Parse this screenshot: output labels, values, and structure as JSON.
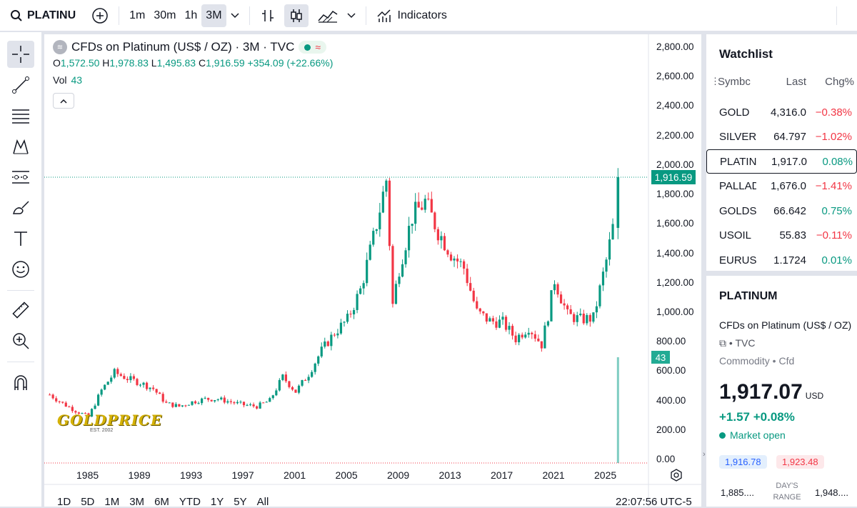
{
  "topbar": {
    "symbol": "PLATINU",
    "intervals": [
      "1m",
      "30m",
      "1h",
      "3M"
    ],
    "active_interval": "3M",
    "indicators_label": "Indicators"
  },
  "chart": {
    "title": "CFDs on Platinum (US$ / OZ) · 3M · TVC",
    "ohlc": {
      "o_label": "O",
      "o": "1,572.50",
      "h_label": "H",
      "h": "1,978.83",
      "l_label": "L",
      "l": "1,495.83",
      "c_label": "C",
      "c": "1,916.59",
      "change": "+354.09 (+22.66%)"
    },
    "vol_label": "Vol",
    "vol_value": "43",
    "last_price_tag": "1,916.59",
    "vol_tag": "43",
    "y_axis": [
      "2,800.00",
      "2,600.00",
      "2,400.00",
      "2,200.00",
      "2,000.00",
      "1,800.00",
      "1,600.00",
      "1,400.00",
      "1,200.00",
      "1,000.00",
      "800.00",
      "600.00",
      "400.00",
      "200.00",
      "0.00"
    ],
    "x_axis": [
      "1985",
      "1989",
      "1993",
      "1997",
      "2001",
      "2005",
      "2009",
      "2013",
      "2017",
      "2021",
      "2025"
    ],
    "ranges": [
      "1D",
      "5D",
      "1M",
      "3M",
      "6M",
      "YTD",
      "1Y",
      "5Y",
      "All"
    ],
    "clock": "22:07:56 UTC-5",
    "watermark": "GOLDPRICE",
    "watermark_sub": "EST. 2002",
    "colors": {
      "up": "#089981",
      "down": "#f23645"
    }
  },
  "chart_data": {
    "type": "candlestick",
    "title": "CFDs on Platinum (US$ / OZ) · 3M · TVC",
    "ylim": [
      0,
      2800
    ],
    "x_ticks": [
      "1985",
      "1989",
      "1993",
      "1997",
      "2001",
      "2005",
      "2009",
      "2013",
      "2017",
      "2021",
      "2025"
    ],
    "approx_close_path": [
      {
        "year": 1982,
        "close": 440
      },
      {
        "year": 1983,
        "close": 380
      },
      {
        "year": 1984,
        "close": 330
      },
      {
        "year": 1985,
        "close": 290
      },
      {
        "year": 1986,
        "close": 470
      },
      {
        "year": 1987,
        "close": 590
      },
      {
        "year": 1988,
        "close": 550
      },
      {
        "year": 1989,
        "close": 520
      },
      {
        "year": 1990,
        "close": 480
      },
      {
        "year": 1991,
        "close": 380
      },
      {
        "year": 1992,
        "close": 360
      },
      {
        "year": 1993,
        "close": 390
      },
      {
        "year": 1994,
        "close": 410
      },
      {
        "year": 1995,
        "close": 410
      },
      {
        "year": 1996,
        "close": 390
      },
      {
        "year": 1997,
        "close": 370
      },
      {
        "year": 1998,
        "close": 360
      },
      {
        "year": 1999,
        "close": 400
      },
      {
        "year": 2000,
        "close": 560
      },
      {
        "year": 2001,
        "close": 460
      },
      {
        "year": 2002,
        "close": 580
      },
      {
        "year": 2003,
        "close": 740
      },
      {
        "year": 2004,
        "close": 860
      },
      {
        "year": 2005,
        "close": 950
      },
      {
        "year": 2006,
        "close": 1150
      },
      {
        "year": 2007,
        "close": 1500
      },
      {
        "year": 2008,
        "close": 1900
      },
      {
        "year": 2008.5,
        "close": 1050
      },
      {
        "year": 2009,
        "close": 1300
      },
      {
        "year": 2010,
        "close": 1650
      },
      {
        "year": 2011,
        "close": 1750
      },
      {
        "year": 2012,
        "close": 1550
      },
      {
        "year": 2013,
        "close": 1400
      },
      {
        "year": 2014,
        "close": 1300
      },
      {
        "year": 2015,
        "close": 1000
      },
      {
        "year": 2016,
        "close": 940
      },
      {
        "year": 2017,
        "close": 930
      },
      {
        "year": 2018,
        "close": 820
      },
      {
        "year": 2019,
        "close": 900
      },
      {
        "year": 2020,
        "close": 780
      },
      {
        "year": 2020.5,
        "close": 980
      },
      {
        "year": 2021,
        "close": 1220
      },
      {
        "year": 2022,
        "close": 980
      },
      {
        "year": 2023,
        "close": 950
      },
      {
        "year": 2024,
        "close": 960
      },
      {
        "year": 2025,
        "close": 1350
      },
      {
        "year": 2025.5,
        "close": 1572.5
      },
      {
        "year": 2025.9,
        "close": 1916.59
      }
    ],
    "last": {
      "open": 1572.5,
      "high": 1978.83,
      "low": 1495.83,
      "close": 1916.59
    },
    "last_volume": 43
  },
  "watchlist": {
    "title": "Watchlist",
    "headers": {
      "symbol": "Symbc",
      "last": "Last",
      "chg": "Chg%"
    },
    "rows": [
      {
        "symbol": "GOLD",
        "last": "4,316.0",
        "chg": "−0.38%",
        "dir": "neg"
      },
      {
        "symbol": "SILVER",
        "last": "64.797",
        "chg": "−1.02%",
        "dir": "neg"
      },
      {
        "symbol": "PLATINU",
        "last": "1,917.0",
        "chg": "0.08%",
        "dir": "pos"
      },
      {
        "symbol": "PALLADI",
        "last": "1,676.0",
        "chg": "−1.41%",
        "dir": "neg"
      },
      {
        "symbol": "GOLDSIL",
        "last": "66.642",
        "chg": "0.75%",
        "dir": "pos"
      },
      {
        "symbol": "USOIL",
        "last": "55.83",
        "chg": "−0.11%",
        "dir": "neg"
      },
      {
        "symbol": "EURUSD",
        "last": "1.1724",
        "chg": "0.01%",
        "dir": "pos"
      }
    ]
  },
  "detail": {
    "symbol": "PLATINUM",
    "name": "CFDs on Platinum (US$ / OZ)",
    "source": "TVC",
    "category": "Commodity • Cfd",
    "price": "1,917.07",
    "currency": "USD",
    "change": "+1.57 +0.08%",
    "market_status": "Market open",
    "bid": "1,916.78",
    "ask": "1,923.48",
    "range_low": "1,885....",
    "range_label": "DAY'S RANGE",
    "range_high": "1,948...."
  }
}
